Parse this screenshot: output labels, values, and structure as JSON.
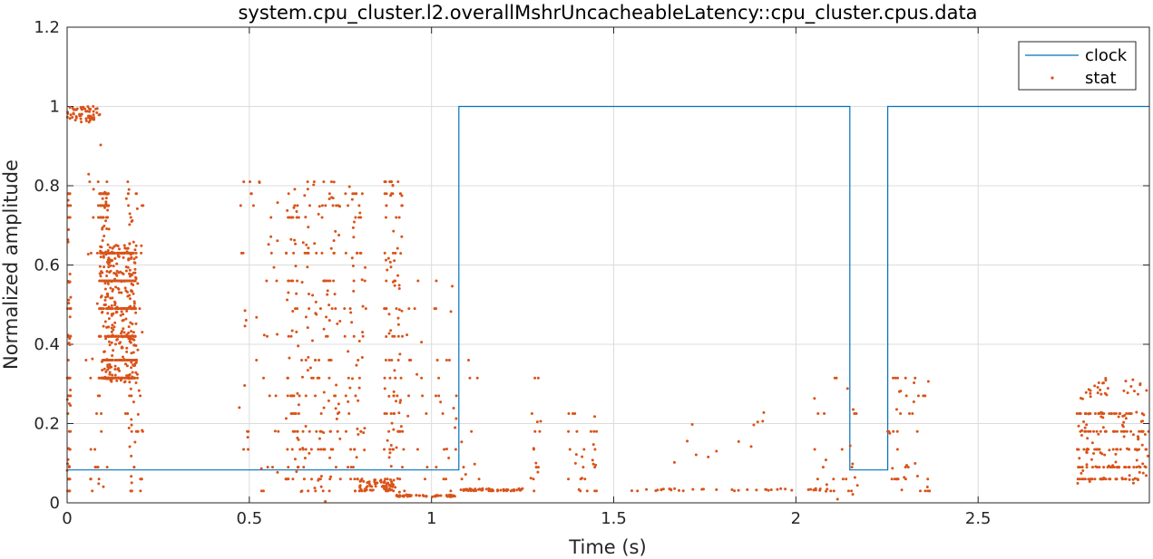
{
  "chart_data": {
    "type": "line",
    "title": "system.cpu_cluster.l2.overallMshrUncacheableLatency::cpu_cluster.cpus.data",
    "xlabel": "Time (s)",
    "ylabel": "Normalized amplitude",
    "xlim": [
      0,
      2.97
    ],
    "ylim": [
      0,
      1.2
    ],
    "xticks": [
      0,
      0.5,
      1,
      1.5,
      2,
      2.5
    ],
    "xtick_labels": [
      "0",
      "0.5",
      "1",
      "1.5",
      "2",
      "2.5"
    ],
    "yticks": [
      0,
      0.2,
      0.4,
      0.6,
      0.8,
      1,
      1.2
    ],
    "ytick_labels": [
      "0",
      "0.2",
      "0.4",
      "0.6",
      "0.8",
      "1",
      "1.2"
    ],
    "grid": true,
    "legend_position": "top-right",
    "colors": {
      "clock": "#0072BD",
      "stat": "#D95319"
    },
    "series": [
      {
        "name": "clock",
        "kind": "step-line",
        "x": [
          0,
          1.075,
          1.075,
          2.148,
          2.148,
          2.252,
          2.252,
          2.97
        ],
        "y": [
          0.083,
          0.083,
          1,
          1,
          0.083,
          0.083,
          1,
          1
        ]
      },
      {
        "name": "stat",
        "kind": "markers",
        "clusters": [
          {
            "x": [
              0.0,
              0.09
            ],
            "y": [
              0.96,
              1.0
            ],
            "n": 60
          },
          {
            "x": [
              0.0,
              0.01
            ],
            "y": [
              0.0,
              0.8
            ],
            "n": 70
          },
          {
            "x": [
              0.05,
              0.09
            ],
            "y": [
              0.0,
              0.9
            ],
            "n": 25
          },
          {
            "x": [
              0.085,
              0.11
            ],
            "y": [
              0.0,
              1.0
            ],
            "n": 35
          },
          {
            "x": [
              0.09,
              0.115
            ],
            "y": [
              0.3,
              0.8
            ],
            "n": 150
          },
          {
            "x": [
              0.11,
              0.19
            ],
            "y": [
              0.3,
              0.66
            ],
            "n": 550
          },
          {
            "x": [
              0.16,
              0.21
            ],
            "y": [
              0.0,
              0.82
            ],
            "n": 70
          },
          {
            "x": [
              0.47,
              0.58
            ],
            "y": [
              0.0,
              0.81
            ],
            "n": 45
          },
          {
            "x": [
              0.6,
              0.75
            ],
            "y": [
              0.0,
              0.81
            ],
            "n": 220
          },
          {
            "x": [
              0.76,
              0.82
            ],
            "y": [
              0.03,
              0.81
            ],
            "n": 80
          },
          {
            "x": [
              0.8,
              0.9
            ],
            "y": [
              0.03,
              0.06
            ],
            "n": 60
          },
          {
            "x": [
              0.87,
              0.92
            ],
            "y": [
              0.02,
              0.81
            ],
            "n": 120
          },
          {
            "x": [
              0.9,
              1.07
            ],
            "y": [
              0.015,
              0.02
            ],
            "n": 55
          },
          {
            "x": [
              0.92,
              1.07
            ],
            "y": [
              0.02,
              0.58
            ],
            "n": 45
          },
          {
            "x": [
              1.08,
              1.25
            ],
            "y": [
              0.03,
              0.036
            ],
            "n": 60
          },
          {
            "x": [
              1.08,
              1.15
            ],
            "y": [
              0.04,
              0.36
            ],
            "n": 10
          },
          {
            "x": [
              1.27,
              1.3
            ],
            "y": [
              0.03,
              0.32
            ],
            "n": 16
          },
          {
            "x": [
              1.37,
              1.46
            ],
            "y": [
              0.03,
              0.23
            ],
            "n": 30
          },
          {
            "x": [
              1.5,
              2.1
            ],
            "y": [
              0.03,
              0.036
            ],
            "n": 40
          },
          {
            "x": [
              1.6,
              1.92
            ],
            "y": [
              0.09,
              0.23
            ],
            "n": 12
          },
          {
            "x": [
              2.05,
              2.17
            ],
            "y": [
              0.0,
              0.32
            ],
            "n": 30
          },
          {
            "x": [
              2.25,
              2.37
            ],
            "y": [
              0.03,
              0.32
            ],
            "n": 45
          },
          {
            "x": [
              2.77,
              2.97
            ],
            "y": [
              0.045,
              0.23
            ],
            "n": 200
          },
          {
            "x": [
              2.78,
              2.97
            ],
            "y": [
              0.26,
              0.32
            ],
            "n": 30
          }
        ]
      }
    ]
  }
}
